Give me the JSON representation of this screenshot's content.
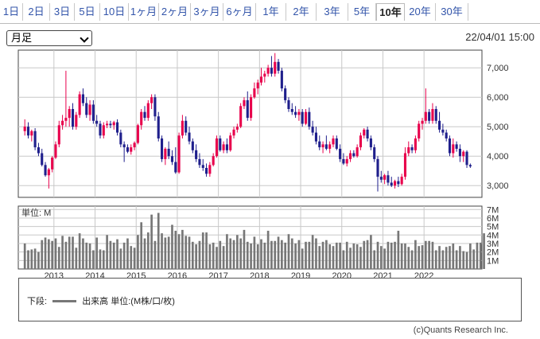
{
  "tabs": [
    {
      "label": "1日",
      "active": false
    },
    {
      "label": "2日",
      "active": false
    },
    {
      "label": "3日",
      "active": false
    },
    {
      "label": "5日",
      "active": false
    },
    {
      "label": "10日",
      "active": false
    },
    {
      "label": "1ヶ月",
      "active": false
    },
    {
      "label": "2ヶ月",
      "active": false
    },
    {
      "label": "3ヶ月",
      "active": false
    },
    {
      "label": "6ヶ月",
      "active": false
    },
    {
      "label": "1年",
      "active": false
    },
    {
      "label": "2年",
      "active": false
    },
    {
      "label": "3年",
      "active": false
    },
    {
      "label": "5年",
      "active": false
    },
    {
      "label": "10年",
      "active": true
    },
    {
      "label": "20年",
      "active": false
    },
    {
      "label": "30年",
      "active": false
    }
  ],
  "period_select": {
    "value": "月足"
  },
  "timestamp": "22/04/01 15:00",
  "legend": {
    "prefix": "下段:",
    "text": "出来高 単位:(M株/口/枚)"
  },
  "copyright": "(c)Quants Research Inc.",
  "colors": {
    "up": "#e8004c",
    "down": "#1f1f8c",
    "volume": "#777777",
    "grid": "#c8c8c8"
  },
  "chart_data": {
    "type": "candlestick",
    "interval": "monthly",
    "price_axis": {
      "ticks": [
        "3,000",
        "4,000",
        "5,000",
        "6,000",
        "7,000"
      ],
      "ylim": [
        2600,
        7600
      ]
    },
    "volume_axis": {
      "label": "単位: M",
      "ticks": [
        "1M",
        "2M",
        "3M",
        "4M",
        "5M",
        "6M",
        "7M"
      ],
      "ylim": [
        0,
        7.4
      ]
    },
    "year_labels": [
      "2013",
      "2014",
      "2015",
      "2016",
      "2017",
      "2018",
      "2019",
      "2020",
      "2021",
      "2022"
    ],
    "start_month": "2012-04",
    "candles": [
      {
        "o": 4850,
        "h": 5250,
        "l": 4700,
        "c": 5000
      },
      {
        "o": 5000,
        "h": 5150,
        "l": 4600,
        "c": 4700
      },
      {
        "o": 4700,
        "h": 4900,
        "l": 4500,
        "c": 4850
      },
      {
        "o": 4850,
        "h": 4950,
        "l": 4200,
        "c": 4300
      },
      {
        "o": 4300,
        "h": 4450,
        "l": 4000,
        "c": 4100
      },
      {
        "o": 4100,
        "h": 4250,
        "l": 3650,
        "c": 3700
      },
      {
        "o": 3700,
        "h": 3800,
        "l": 3300,
        "c": 3350
      },
      {
        "o": 3350,
        "h": 3600,
        "l": 2900,
        "c": 3550
      },
      {
        "o": 3550,
        "h": 4000,
        "l": 3450,
        "c": 3950
      },
      {
        "o": 3950,
        "h": 4500,
        "l": 3900,
        "c": 4400
      },
      {
        "o": 4400,
        "h": 5200,
        "l": 4300,
        "c": 5050
      },
      {
        "o": 5050,
        "h": 5400,
        "l": 4900,
        "c": 5200
      },
      {
        "o": 5200,
        "h": 6900,
        "l": 5000,
        "c": 5300
      },
      {
        "o": 5300,
        "h": 5700,
        "l": 5000,
        "c": 5600
      },
      {
        "o": 5600,
        "h": 5800,
        "l": 4900,
        "c": 5000
      },
      {
        "o": 5000,
        "h": 5500,
        "l": 4900,
        "c": 5400
      },
      {
        "o": 5400,
        "h": 6200,
        "l": 5300,
        "c": 6100
      },
      {
        "o": 6100,
        "h": 6300,
        "l": 5700,
        "c": 5800
      },
      {
        "o": 5800,
        "h": 6000,
        "l": 5300,
        "c": 5400
      },
      {
        "o": 5400,
        "h": 5900,
        "l": 5200,
        "c": 5750
      },
      {
        "o": 5750,
        "h": 5900,
        "l": 5100,
        "c": 5200
      },
      {
        "o": 5200,
        "h": 5400,
        "l": 5000,
        "c": 5100
      },
      {
        "o": 5100,
        "h": 5200,
        "l": 4600,
        "c": 4700
      },
      {
        "o": 4700,
        "h": 5150,
        "l": 4600,
        "c": 5050
      },
      {
        "o": 5050,
        "h": 5200,
        "l": 4950,
        "c": 5100
      },
      {
        "o": 5100,
        "h": 5200,
        "l": 4950,
        "c": 5050
      },
      {
        "o": 5050,
        "h": 5200,
        "l": 4900,
        "c": 5150
      },
      {
        "o": 5150,
        "h": 5250,
        "l": 4700,
        "c": 4800
      },
      {
        "o": 4800,
        "h": 4900,
        "l": 4300,
        "c": 4400
      },
      {
        "o": 4400,
        "h": 4500,
        "l": 3800,
        "c": 4300
      },
      {
        "o": 4300,
        "h": 4400,
        "l": 4100,
        "c": 4150
      },
      {
        "o": 4150,
        "h": 4400,
        "l": 4050,
        "c": 4300
      },
      {
        "o": 4300,
        "h": 4500,
        "l": 4200,
        "c": 4450
      },
      {
        "o": 4450,
        "h": 5100,
        "l": 4400,
        "c": 5050
      },
      {
        "o": 5050,
        "h": 5600,
        "l": 4900,
        "c": 5500
      },
      {
        "o": 5500,
        "h": 5700,
        "l": 5200,
        "c": 5300
      },
      {
        "o": 5300,
        "h": 5900,
        "l": 5200,
        "c": 5800
      },
      {
        "o": 5800,
        "h": 6100,
        "l": 5600,
        "c": 6000
      },
      {
        "o": 6000,
        "h": 6100,
        "l": 5200,
        "c": 5350
      },
      {
        "o": 5350,
        "h": 5500,
        "l": 4500,
        "c": 4600
      },
      {
        "o": 4600,
        "h": 4700,
        "l": 3800,
        "c": 3900
      },
      {
        "o": 3900,
        "h": 4300,
        "l": 3700,
        "c": 4250
      },
      {
        "o": 4250,
        "h": 4500,
        "l": 3900,
        "c": 4000
      },
      {
        "o": 4000,
        "h": 4200,
        "l": 3700,
        "c": 3800
      },
      {
        "o": 3800,
        "h": 4300,
        "l": 3400,
        "c": 3450
      },
      {
        "o": 3450,
        "h": 4800,
        "l": 3400,
        "c": 4700
      },
      {
        "o": 4700,
        "h": 5400,
        "l": 4600,
        "c": 5200
      },
      {
        "o": 5200,
        "h": 5350,
        "l": 4700,
        "c": 4800
      },
      {
        "o": 4800,
        "h": 5000,
        "l": 4400,
        "c": 4500
      },
      {
        "o": 4500,
        "h": 4600,
        "l": 4100,
        "c": 4200
      },
      {
        "o": 4200,
        "h": 4400,
        "l": 3800,
        "c": 3900
      },
      {
        "o": 3900,
        "h": 4100,
        "l": 3600,
        "c": 3700
      },
      {
        "o": 3700,
        "h": 3900,
        "l": 3500,
        "c": 3600
      },
      {
        "o": 3600,
        "h": 3750,
        "l": 3300,
        "c": 3400
      },
      {
        "o": 3400,
        "h": 3800,
        "l": 3300,
        "c": 3700
      },
      {
        "o": 3700,
        "h": 4100,
        "l": 3650,
        "c": 4000
      },
      {
        "o": 4000,
        "h": 4700,
        "l": 3950,
        "c": 4600
      },
      {
        "o": 4600,
        "h": 4700,
        "l": 4150,
        "c": 4200
      },
      {
        "o": 4200,
        "h": 4500,
        "l": 4100,
        "c": 4400
      },
      {
        "o": 4400,
        "h": 4600,
        "l": 4100,
        "c": 4200
      },
      {
        "o": 4200,
        "h": 4800,
        "l": 4150,
        "c": 4700
      },
      {
        "o": 4700,
        "h": 5000,
        "l": 4600,
        "c": 4900
      },
      {
        "o": 4900,
        "h": 5100,
        "l": 4800,
        "c": 5000
      },
      {
        "o": 5000,
        "h": 5800,
        "l": 4950,
        "c": 5700
      },
      {
        "o": 5700,
        "h": 6000,
        "l": 5600,
        "c": 5900
      },
      {
        "o": 5900,
        "h": 6200,
        "l": 5200,
        "c": 5300
      },
      {
        "o": 5300,
        "h": 6100,
        "l": 5200,
        "c": 6000
      },
      {
        "o": 6000,
        "h": 6500,
        "l": 5950,
        "c": 6300
      },
      {
        "o": 6300,
        "h": 6600,
        "l": 6100,
        "c": 6500
      },
      {
        "o": 6500,
        "h": 7000,
        "l": 6400,
        "c": 6700
      },
      {
        "o": 6700,
        "h": 6900,
        "l": 6500,
        "c": 6800
      },
      {
        "o": 6800,
        "h": 7100,
        "l": 6700,
        "c": 7000
      },
      {
        "o": 7000,
        "h": 7400,
        "l": 6700,
        "c": 6800
      },
      {
        "o": 6800,
        "h": 7500,
        "l": 6700,
        "c": 7200
      },
      {
        "o": 7200,
        "h": 7300,
        "l": 6800,
        "c": 6900
      },
      {
        "o": 6900,
        "h": 7000,
        "l": 6200,
        "c": 6300
      },
      {
        "o": 6300,
        "h": 6400,
        "l": 5800,
        "c": 5900
      },
      {
        "o": 5900,
        "h": 6000,
        "l": 5500,
        "c": 5600
      },
      {
        "o": 5600,
        "h": 5800,
        "l": 5400,
        "c": 5500
      },
      {
        "o": 5500,
        "h": 5700,
        "l": 5300,
        "c": 5400
      },
      {
        "o": 5400,
        "h": 5600,
        "l": 5200,
        "c": 5500
      },
      {
        "o": 5500,
        "h": 5600,
        "l": 5000,
        "c": 5100
      },
      {
        "o": 5100,
        "h": 5600,
        "l": 5050,
        "c": 5500
      },
      {
        "o": 5500,
        "h": 5650,
        "l": 4900,
        "c": 5000
      },
      {
        "o": 5000,
        "h": 5200,
        "l": 4700,
        "c": 4800
      },
      {
        "o": 4800,
        "h": 5000,
        "l": 4400,
        "c": 4500
      },
      {
        "o": 4500,
        "h": 4700,
        "l": 4200,
        "c": 4300
      },
      {
        "o": 4300,
        "h": 4500,
        "l": 4100,
        "c": 4400
      },
      {
        "o": 4400,
        "h": 4700,
        "l": 4200,
        "c": 4250
      },
      {
        "o": 4250,
        "h": 4500,
        "l": 4100,
        "c": 4400
      },
      {
        "o": 4400,
        "h": 4700,
        "l": 4300,
        "c": 4600
      },
      {
        "o": 4600,
        "h": 4700,
        "l": 4200,
        "c": 4250
      },
      {
        "o": 4250,
        "h": 4400,
        "l": 3800,
        "c": 3900
      },
      {
        "o": 3900,
        "h": 4100,
        "l": 3700,
        "c": 3750
      },
      {
        "o": 3750,
        "h": 4000,
        "l": 3650,
        "c": 3900
      },
      {
        "o": 3900,
        "h": 4200,
        "l": 3800,
        "c": 4100
      },
      {
        "o": 4100,
        "h": 4200,
        "l": 3950,
        "c": 4000
      },
      {
        "o": 4000,
        "h": 4400,
        "l": 3950,
        "c": 4300
      },
      {
        "o": 4300,
        "h": 4800,
        "l": 4200,
        "c": 4700
      },
      {
        "o": 4700,
        "h": 4950,
        "l": 4600,
        "c": 4900
      },
      {
        "o": 4900,
        "h": 5000,
        "l": 4500,
        "c": 4600
      },
      {
        "o": 4600,
        "h": 4700,
        "l": 4200,
        "c": 4300
      },
      {
        "o": 4300,
        "h": 4400,
        "l": 3800,
        "c": 3900
      },
      {
        "o": 3900,
        "h": 4000,
        "l": 2800,
        "c": 3300
      },
      {
        "o": 3300,
        "h": 3500,
        "l": 3100,
        "c": 3200
      },
      {
        "o": 3200,
        "h": 3400,
        "l": 3050,
        "c": 3350
      },
      {
        "o": 3350,
        "h": 3500,
        "l": 3000,
        "c": 3100
      },
      {
        "o": 3100,
        "h": 3300,
        "l": 2950,
        "c": 3000
      },
      {
        "o": 3000,
        "h": 3200,
        "l": 2900,
        "c": 3150
      },
      {
        "o": 3150,
        "h": 3300,
        "l": 2950,
        "c": 3050
      },
      {
        "o": 3050,
        "h": 3400,
        "l": 3000,
        "c": 3300
      },
      {
        "o": 3300,
        "h": 4300,
        "l": 3200,
        "c": 4100
      },
      {
        "o": 4100,
        "h": 4500,
        "l": 4000,
        "c": 4300
      },
      {
        "o": 4300,
        "h": 4400,
        "l": 4100,
        "c": 4200
      },
      {
        "o": 4200,
        "h": 4700,
        "l": 4100,
        "c": 4600
      },
      {
        "o": 4600,
        "h": 5200,
        "l": 4500,
        "c": 5100
      },
      {
        "o": 5100,
        "h": 5300,
        "l": 4900,
        "c": 5200
      },
      {
        "o": 5200,
        "h": 6300,
        "l": 5100,
        "c": 5500
      },
      {
        "o": 5500,
        "h": 5600,
        "l": 5100,
        "c": 5200
      },
      {
        "o": 5200,
        "h": 5800,
        "l": 5100,
        "c": 5600
      },
      {
        "o": 5600,
        "h": 5700,
        "l": 5100,
        "c": 5200
      },
      {
        "o": 5200,
        "h": 5500,
        "l": 4800,
        "c": 4900
      },
      {
        "o": 4900,
        "h": 5100,
        "l": 4700,
        "c": 4800
      },
      {
        "o": 4800,
        "h": 4900,
        "l": 4500,
        "c": 4600
      },
      {
        "o": 4600,
        "h": 4700,
        "l": 4000,
        "c": 4100
      },
      {
        "o": 4100,
        "h": 4600,
        "l": 3950,
        "c": 4400
      },
      {
        "o": 4400,
        "h": 4500,
        "l": 4150,
        "c": 4250
      },
      {
        "o": 4250,
        "h": 4400,
        "l": 3800,
        "c": 4000
      },
      {
        "o": 4000,
        "h": 4200,
        "l": 3800,
        "c": 4150
      },
      {
        "o": 4150,
        "h": 4200,
        "l": 3600,
        "c": 3700
      },
      {
        "o": 3700,
        "h": 3750,
        "l": 3600,
        "c": 3650
      }
    ],
    "volume": [
      3.0,
      2.2,
      2.3,
      2.4,
      2.0,
      3.4,
      3.7,
      3.5,
      3.3,
      3.6,
      2.6,
      3.9,
      3.2,
      3.8,
      3.8,
      2.5,
      4.2,
      3.6,
      3.1,
      3.0,
      2.2,
      3.7,
      2.3,
      2.2,
      4.0,
      3.3,
      3.1,
      3.5,
      2.4,
      3.1,
      3.6,
      2.7,
      2.5,
      4.0,
      5.5,
      3.6,
      4.3,
      6.4,
      3.3,
      6.6,
      4.2,
      3.7,
      3.8,
      5.2,
      4.5,
      4.1,
      4.6,
      3.9,
      3.8,
      3.2,
      2.9,
      3.3,
      4.3,
      4.3,
      2.9,
      3.1,
      2.6,
      3.3,
      2.7,
      4.1,
      3.6,
      3.4,
      4.0,
      3.6,
      4.6,
      3.2,
      3.0,
      3.8,
      2.9,
      3.5,
      3.1,
      4.5,
      3.3,
      3.3,
      3.8,
      3.4,
      3.1,
      4.1,
      3.6,
      3.0,
      3.4,
      2.4,
      3.2,
      3.2,
      4.0,
      3.6,
      2.7,
      3.2,
      3.4,
      2.9,
      2.7,
      3.1,
      3.1,
      2.2,
      3.2,
      2.5,
      3.0,
      2.9,
      2.6,
      3.3,
      3.4,
      4.0,
      2.2,
      3.2,
      2.7,
      2.4,
      3.2,
      3.1,
      3.2,
      4.5,
      3.0,
      3.0,
      2.6,
      2.2,
      3.4,
      2.7,
      2.8,
      3.3,
      3.3,
      3.2,
      2.2,
      2.7,
      2.2,
      2.6,
      2.7,
      3.0,
      2.2,
      2.7,
      2.1,
      2.0,
      3.0,
      2.3,
      3.1,
      3.1,
      4.2
    ]
  }
}
